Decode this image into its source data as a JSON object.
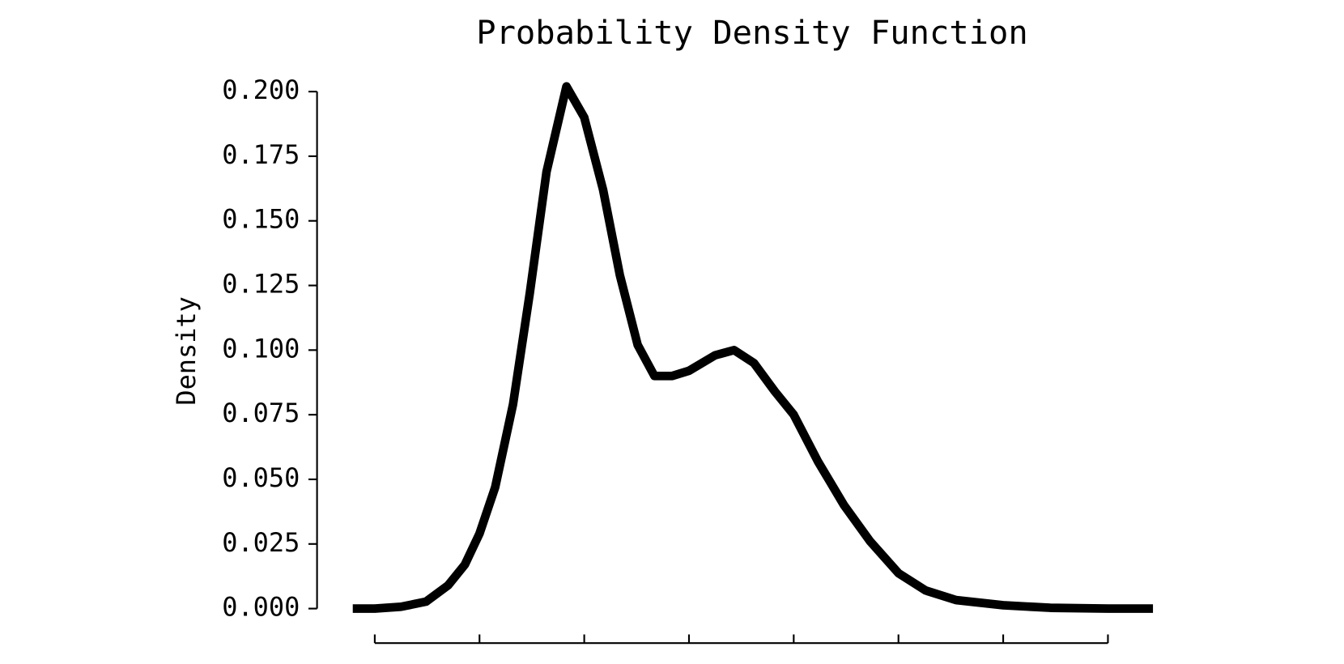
{
  "chart_data": {
    "type": "line",
    "title": "Probability Density Function",
    "y_label": "Density",
    "x": [
      -0.21,
      0,
      0.25,
      0.49,
      0.7,
      0.86,
      1.0,
      1.15,
      1.32,
      1.48,
      1.64,
      1.83,
      2.0,
      2.18,
      2.34,
      2.51,
      2.67,
      2.84,
      3.0,
      3.25,
      3.43,
      3.62,
      3.82,
      4.0,
      4.23,
      4.48,
      4.73,
      5.0,
      5.26,
      5.55,
      6.0,
      6.45,
      7.0,
      7.43
    ],
    "series": [
      {
        "color": "#000000",
        "values": [
          0,
          0,
          0.0007,
          0.0027,
          0.009,
          0.017,
          0.029,
          0.047,
          0.079,
          0.122,
          0.169,
          0.202,
          0.19,
          0.162,
          0.129,
          0.102,
          0.09,
          0.09,
          0.092,
          0.098,
          0.1,
          0.095,
          0.084,
          0.075,
          0.057,
          0.04,
          0.026,
          0.0137,
          0.007,
          0.0033,
          0.0013,
          0.0003,
          0,
          0
        ]
      }
    ],
    "xlim": [
      -0.21,
      7.43
    ],
    "xticks": [
      0,
      1,
      2,
      3,
      4,
      5,
      6,
      7
    ],
    "ylim": [
      0,
      0.2
    ],
    "yticks": [
      {
        "value": 0,
        "label": "0.000"
      },
      {
        "value": 0.025,
        "label": "0.025"
      },
      {
        "value": 0.05,
        "label": "0.050"
      },
      {
        "value": 0.075,
        "label": "0.075"
      },
      {
        "value": 0.1,
        "label": "0.100"
      },
      {
        "value": 0.125,
        "label": "0.125"
      },
      {
        "value": 0.15,
        "label": "0.150"
      },
      {
        "value": 0.175,
        "label": "0.175"
      },
      {
        "value": 0.2,
        "label": "0.200"
      }
    ],
    "grid": false
  }
}
